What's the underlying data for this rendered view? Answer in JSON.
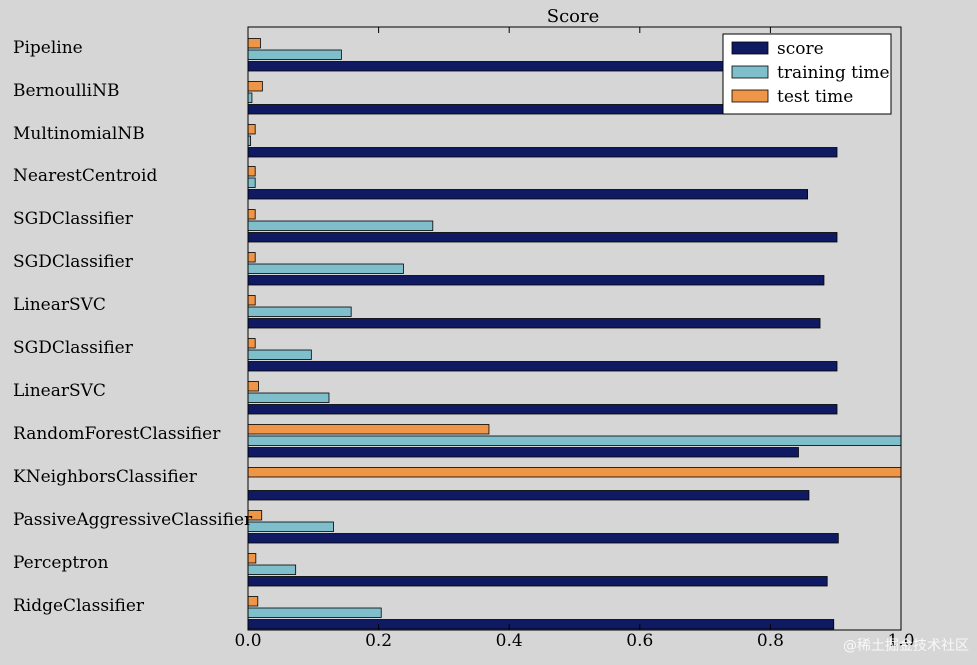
{
  "chart_data": {
    "type": "bar",
    "orientation": "horizontal",
    "title": "Score",
    "xlabel": "",
    "ylabel": "",
    "xlim": [
      0,
      1.0
    ],
    "x_ticks": [
      "0.0",
      "0.2",
      "0.4",
      "0.6",
      "0.8",
      "1.0"
    ],
    "grid": false,
    "legend_position": "top-right",
    "categories": [
      "Pipeline",
      "BernoulliNB",
      "MultinomialNB",
      "NearestCentroid",
      "SGDClassifier",
      "SGDClassifier",
      "LinearSVC",
      "SGDClassifier",
      "LinearSVC",
      "RandomForestClassifier",
      "KNeighborsClassifier",
      "PassiveAggressiveClassifier",
      "Perceptron",
      "RidgeClassifier"
    ],
    "series": [
      {
        "name": "score",
        "color": "#0f1a63",
        "values": [
          0.728,
          0.728,
          0.902,
          0.857,
          0.902,
          0.882,
          0.876,
          0.902,
          0.902,
          0.843,
          0.859,
          0.904,
          0.887,
          0.897
        ]
      },
      {
        "name": "training time",
        "color": "#7fbfcc",
        "values": [
          0.143,
          0.006,
          0.004,
          0.011,
          0.283,
          0.238,
          0.158,
          0.097,
          0.124,
          1.0,
          0.0,
          0.131,
          0.073,
          0.204
        ]
      },
      {
        "name": "test time",
        "color": "#ef9548",
        "values": [
          0.019,
          0.022,
          0.011,
          0.011,
          0.011,
          0.011,
          0.011,
          0.011,
          0.016,
          0.369,
          1.0,
          0.021,
          0.012,
          0.015
        ]
      }
    ]
  },
  "watermark": "@稀土掘金技术社区"
}
